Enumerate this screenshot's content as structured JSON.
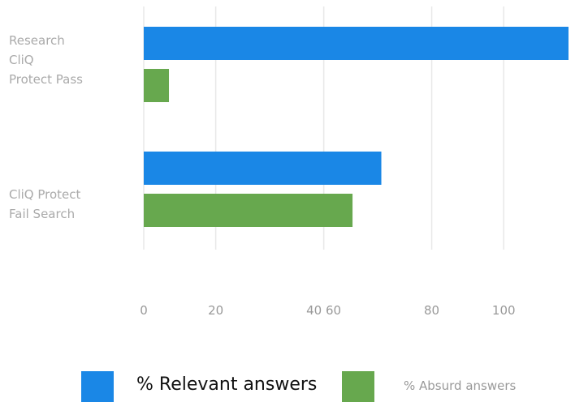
{
  "chart_data": {
    "type": "barh",
    "categories": [
      "Research\nCliQ\nProtect Pass",
      "CliQ Protect\n Fail Search"
    ],
    "series": [
      {
        "name": "% Relevant answers",
        "color": "#1a87e6",
        "values": [
          118,
          66
        ]
      },
      {
        "name": "% Absurd answers",
        "color": "#67a84e",
        "values": [
          7,
          58
        ]
      }
    ],
    "xlim": [
      0,
      118
    ],
    "xticks": [
      0,
      20,
      {
        "value": 50,
        "label": "40 60"
      },
      80,
      100
    ],
    "grid": true,
    "legend": "bottom"
  }
}
